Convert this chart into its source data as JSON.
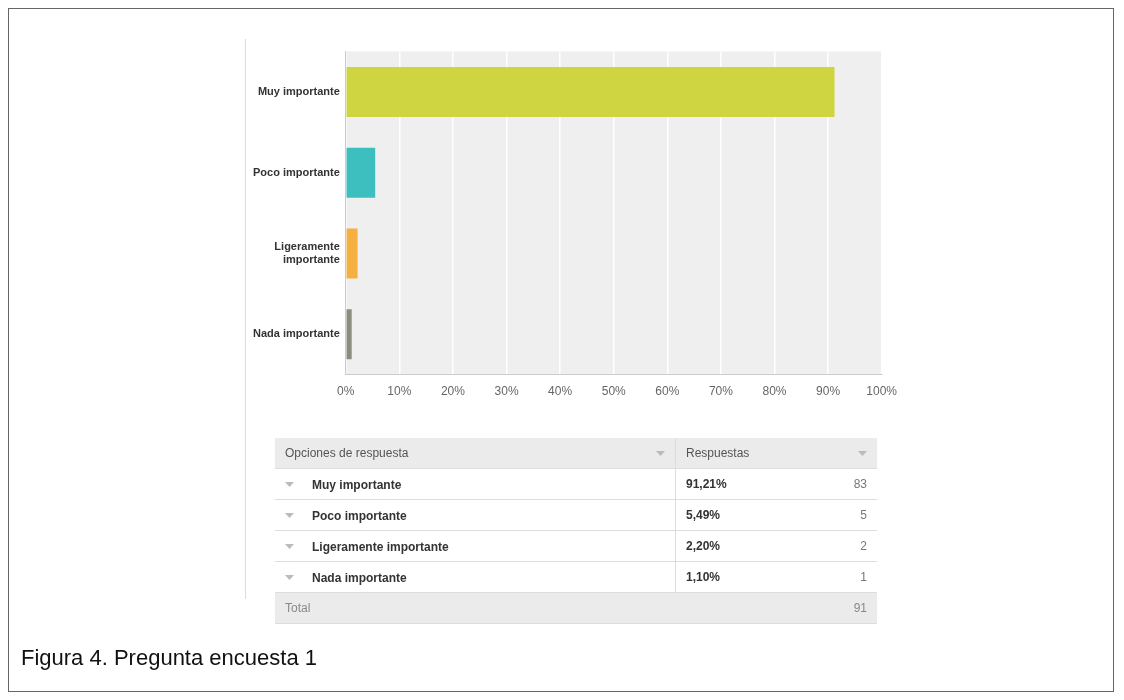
{
  "chart_data": {
    "type": "bar",
    "orientation": "horizontal",
    "title": "Figura 4. Pregunta encuesta 1",
    "categories": [
      "Muy importante",
      "Poco importante",
      "Ligeramente importante",
      "Nada importante"
    ],
    "values": [
      91.21,
      5.49,
      2.2,
      1.1
    ],
    "colors": [
      "#cfd541",
      "#3dbfbf",
      "#f5b041",
      "#8a8c7e"
    ],
    "xlim": [
      0,
      100
    ],
    "xticks": [
      {
        "value": 0,
        "label": "0%"
      },
      {
        "value": 10,
        "label": "10%"
      },
      {
        "value": 20,
        "label": "20%"
      },
      {
        "value": 30,
        "label": "30%"
      },
      {
        "value": 40,
        "label": "40%"
      },
      {
        "value": 50,
        "label": "50%"
      },
      {
        "value": 60,
        "label": "60%"
      },
      {
        "value": 70,
        "label": "70%"
      },
      {
        "value": 80,
        "label": "80%"
      },
      {
        "value": 90,
        "label": "90%"
      },
      {
        "value": 100,
        "label": "100%"
      }
    ],
    "grid": "x",
    "legend": false,
    "annotations": [
      "Opciones de respuesta",
      "Respuestas",
      "91,21%",
      "83",
      "5,49%",
      "5",
      "2,20%",
      "2",
      "1,10%",
      "1",
      "Total",
      "91"
    ]
  }
}
